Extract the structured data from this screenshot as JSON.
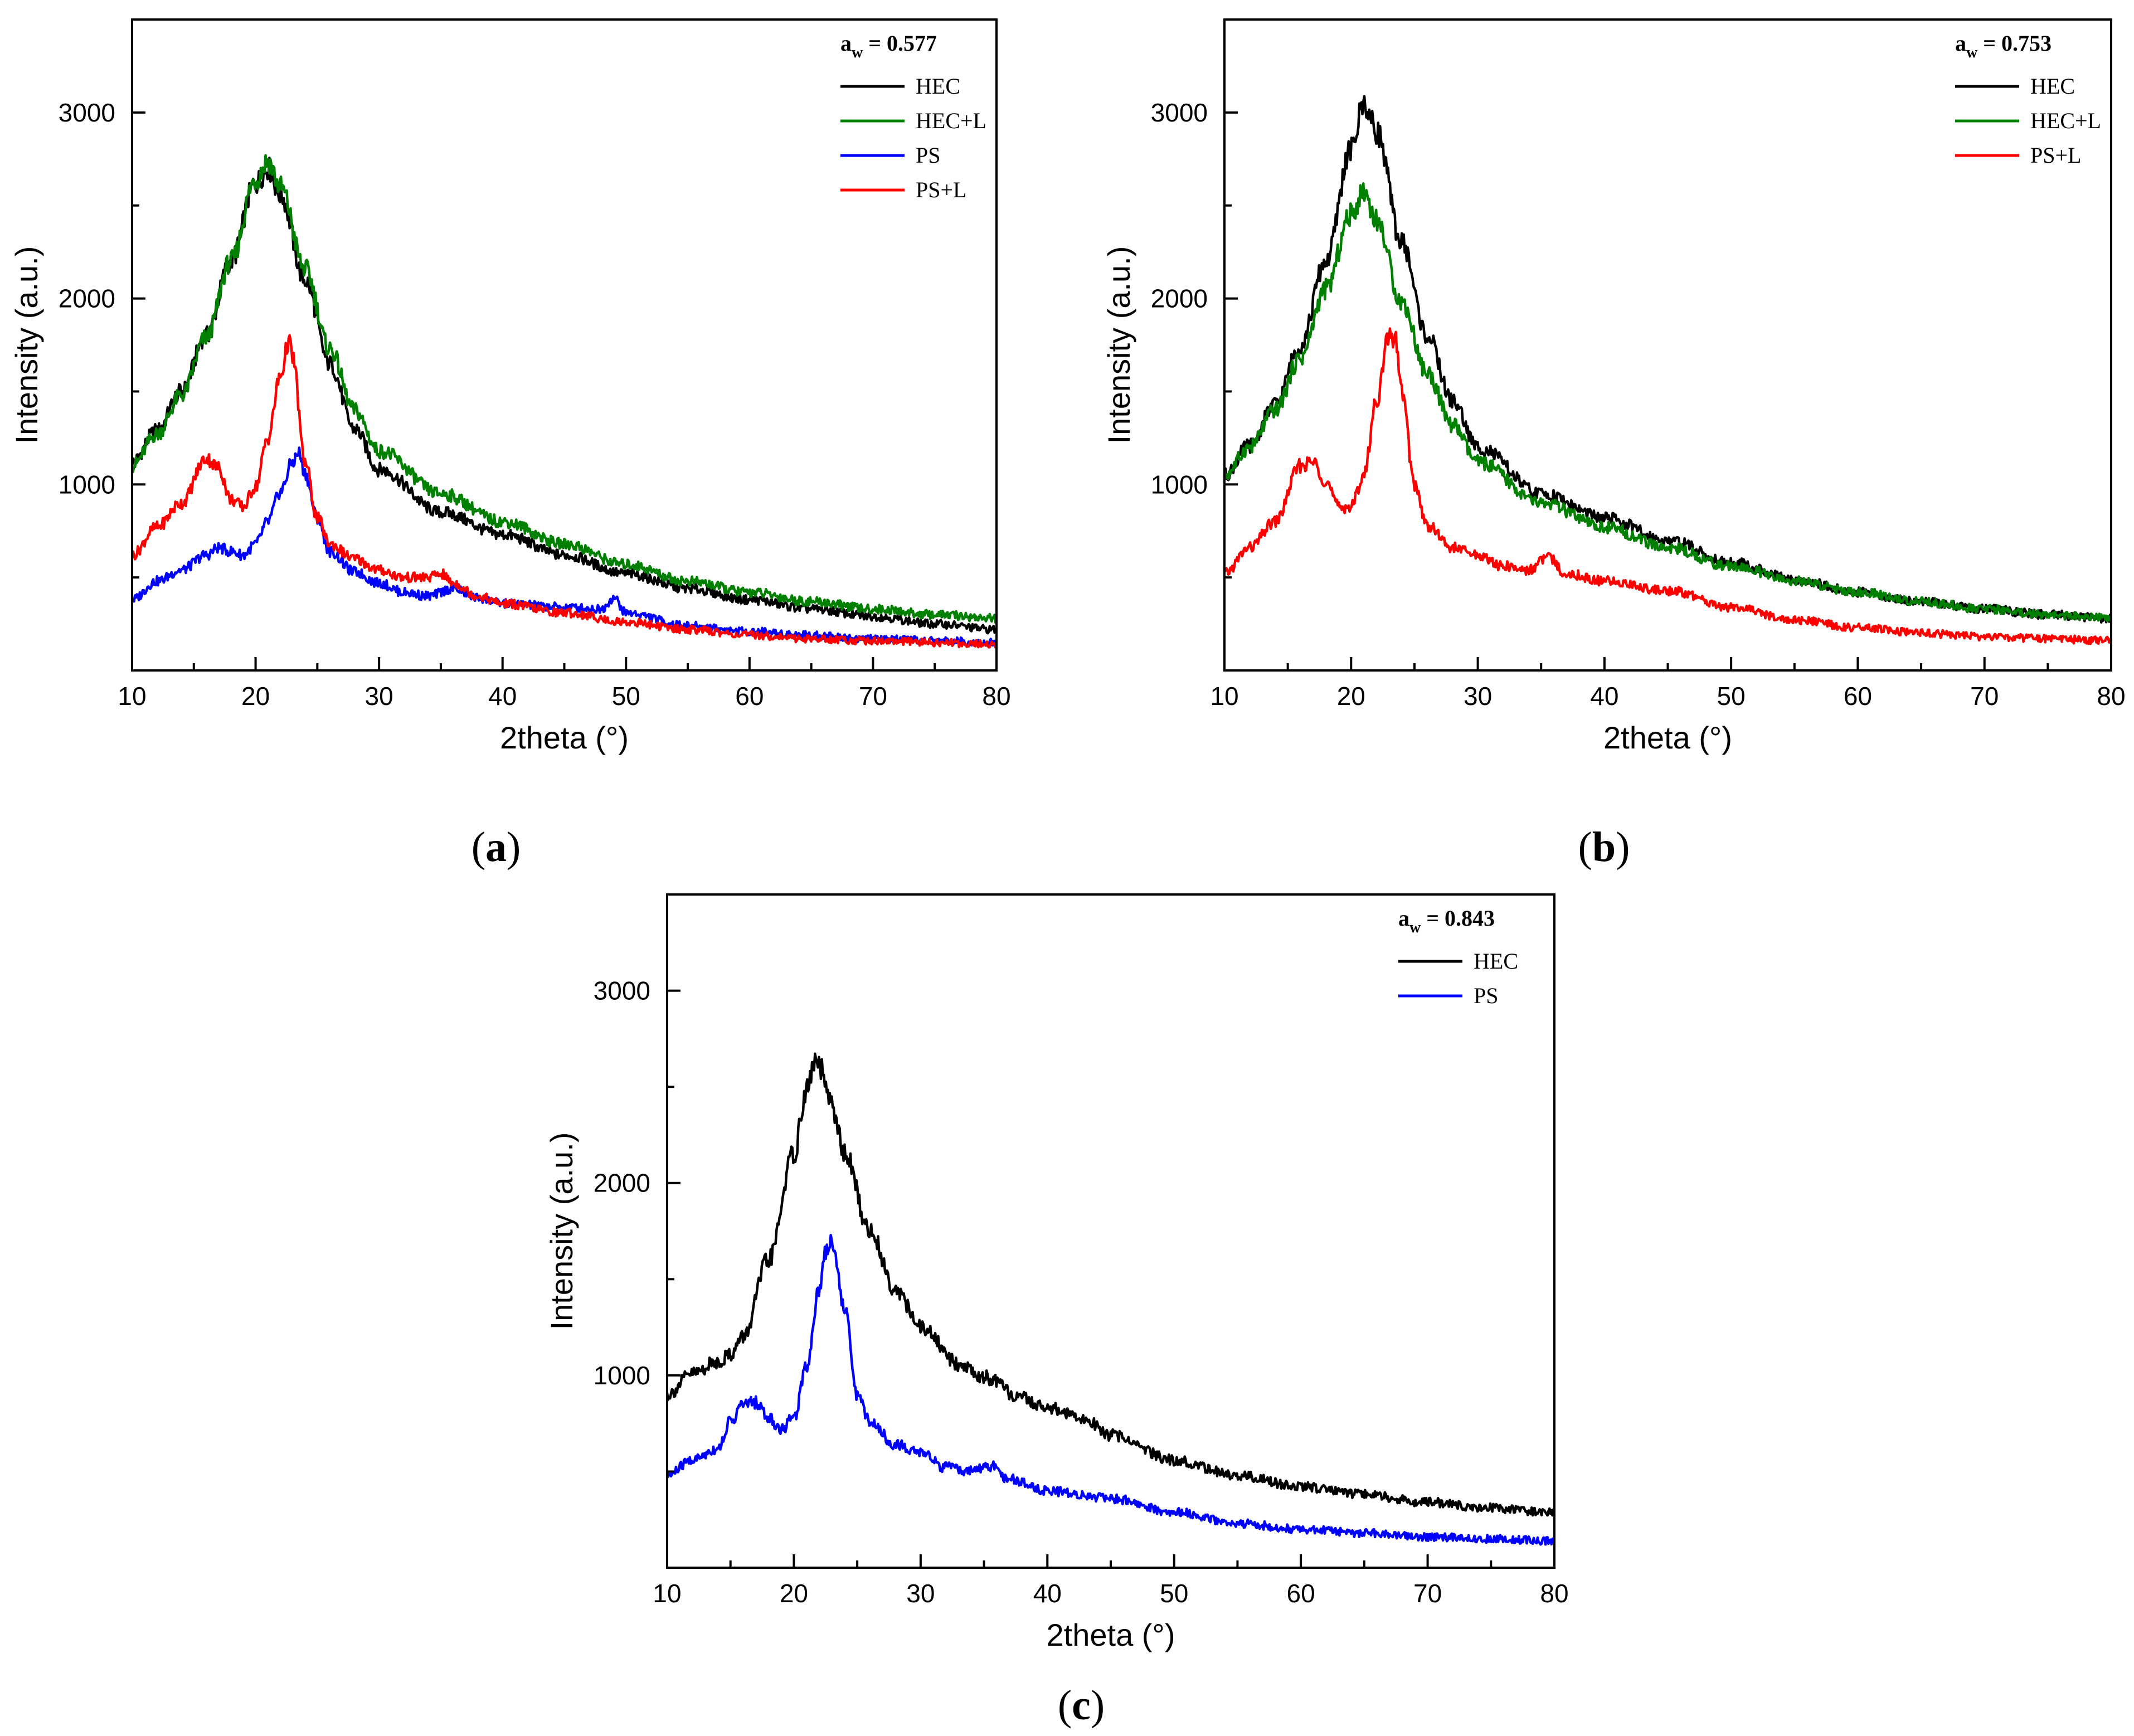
{
  "chart_data": [
    {
      "type": "line",
      "panel": "a",
      "panel_label_letter": "a",
      "panel_label_open": "(",
      "panel_label_close": ")",
      "legend_title_prefix": "a",
      "legend_title_sub": "w",
      "legend_title_suffix": "= 0.577",
      "xlabel": "2theta (°)",
      "ylabel": "Intensity (a.u.)",
      "xlim": [
        10,
        80
      ],
      "ylim": [
        0,
        3500
      ],
      "xticks": [
        10,
        20,
        30,
        40,
        50,
        60,
        70,
        80
      ],
      "yticks": [
        1000,
        2000,
        3000
      ],
      "legend_position": "top-right",
      "series": [
        {
          "name": "HEC",
          "color": "#000000",
          "x": [
            10,
            12,
            14,
            16,
            18,
            20,
            21,
            22,
            24,
            26,
            28,
            30,
            35,
            40,
            45,
            50,
            55,
            60,
            65,
            70,
            75,
            80
          ],
          "y": [
            1120,
            1290,
            1500,
            1800,
            2200,
            2620,
            2700,
            2560,
            2100,
            1650,
            1300,
            1080,
            850,
            730,
            620,
            520,
            440,
            380,
            330,
            290,
            250,
            220
          ]
        },
        {
          "name": "HEC+L",
          "color": "#008000",
          "x": [
            10,
            12,
            14,
            16,
            18,
            20,
            21,
            22,
            24,
            26,
            28,
            30,
            35,
            40,
            45,
            50,
            55,
            60,
            65,
            70,
            75,
            80
          ],
          "y": [
            1100,
            1270,
            1480,
            1790,
            2200,
            2640,
            2740,
            2600,
            2160,
            1730,
            1400,
            1180,
            950,
            800,
            680,
            570,
            480,
            420,
            370,
            330,
            300,
            280
          ]
        },
        {
          "name": "PS",
          "color": "#0000ff",
          "x": [
            10,
            12,
            14,
            16,
            17,
            18,
            19,
            20,
            21,
            22,
            23,
            23.5,
            24,
            25,
            26,
            28,
            30,
            32,
            34,
            36,
            38,
            40,
            45,
            48,
            49,
            50,
            55,
            60,
            65,
            70,
            75,
            80
          ],
          "y": [
            380,
            480,
            540,
            620,
            660,
            640,
            620,
            680,
            800,
            960,
            1120,
            1170,
            1060,
            820,
            640,
            530,
            470,
            420,
            400,
            440,
            390,
            360,
            340,
            330,
            390,
            310,
            240,
            210,
            190,
            170,
            160,
            150
          ]
        },
        {
          "name": "PS+L",
          "color": "#ff0000",
          "x": [
            10,
            12,
            14,
            16,
            17,
            18,
            19,
            20,
            21,
            22,
            22.7,
            23,
            24,
            25,
            26,
            28,
            30,
            32,
            34,
            35,
            36,
            38,
            40,
            45,
            50,
            55,
            60,
            65,
            70,
            75,
            80
          ],
          "y": [
            620,
            770,
            900,
            1140,
            1090,
            920,
            880,
            990,
            1250,
            1580,
            1770,
            1680,
            1120,
            820,
            680,
            600,
            540,
            500,
            500,
            520,
            470,
            400,
            360,
            310,
            260,
            220,
            190,
            170,
            160,
            150,
            140
          ]
        }
      ]
    },
    {
      "type": "line",
      "panel": "b",
      "panel_label_letter": "b",
      "panel_label_open": "(",
      "panel_label_close": ")",
      "legend_title_prefix": "a",
      "legend_title_sub": "w",
      "legend_title_suffix": "= 0.753",
      "xlabel": "2theta (°)",
      "ylabel": "Intensity (a.u.)",
      "xlim": [
        10,
        80
      ],
      "ylim": [
        0,
        3500
      ],
      "xticks": [
        10,
        20,
        30,
        40,
        50,
        60,
        70,
        80
      ],
      "yticks": [
        1000,
        2000,
        3000
      ],
      "legend_position": "top-right",
      "series": [
        {
          "name": "HEC",
          "color": "#000000",
          "x": [
            10,
            12,
            14,
            16,
            18,
            20,
            21,
            22,
            24,
            26,
            28,
            30,
            35,
            40,
            45,
            50,
            55,
            60,
            65,
            70,
            75,
            80
          ],
          "y": [
            1050,
            1210,
            1430,
            1750,
            2200,
            2800,
            3050,
            2900,
            2300,
            1800,
            1450,
            1200,
            950,
            820,
            700,
            580,
            490,
            420,
            370,
            330,
            300,
            280
          ]
        },
        {
          "name": "HEC+L",
          "color": "#008000",
          "x": [
            10,
            12,
            14,
            16,
            18,
            20,
            21,
            22,
            24,
            26,
            28,
            30,
            35,
            40,
            45,
            50,
            55,
            60,
            65,
            70,
            75,
            80
          ],
          "y": [
            1050,
            1200,
            1400,
            1680,
            2050,
            2450,
            2580,
            2420,
            1980,
            1600,
            1320,
            1120,
            900,
            770,
            660,
            560,
            480,
            420,
            370,
            330,
            300,
            280
          ]
        },
        {
          "name": "PS+L",
          "color": "#ff0000",
          "x": [
            10,
            12,
            14,
            16,
            17,
            18,
            19,
            20,
            21,
            22,
            23,
            23.5,
            24,
            25,
            26,
            28,
            30,
            32,
            34,
            35.5,
            37,
            40,
            45,
            50,
            55,
            60,
            65,
            70,
            75,
            80
          ],
          "y": [
            520,
            660,
            800,
            1100,
            1120,
            1020,
            880,
            880,
            1050,
            1450,
            1800,
            1780,
            1500,
            1000,
            780,
            660,
            620,
            560,
            540,
            610,
            520,
            480,
            430,
            340,
            270,
            230,
            200,
            180,
            170,
            160
          ]
        }
      ]
    },
    {
      "type": "line",
      "panel": "c",
      "panel_label_letter": "c",
      "panel_label_open": "(",
      "panel_label_close": ")",
      "legend_title_prefix": "a",
      "legend_title_sub": "w",
      "legend_title_suffix": "= 0.843",
      "xlabel": "2theta (°)",
      "ylabel": "Intensity (a.u.)",
      "xlim": [
        10,
        80
      ],
      "ylim": [
        0,
        3500
      ],
      "xticks": [
        10,
        20,
        30,
        40,
        50,
        60,
        70,
        80
      ],
      "yticks": [
        1000,
        2000,
        3000
      ],
      "legend_position": "top-right",
      "series": [
        {
          "name": "HEC",
          "color": "#000000",
          "x": [
            10,
            12,
            14,
            15,
            16,
            18,
            20,
            21,
            21.7,
            22,
            23,
            24,
            26,
            28,
            30,
            33,
            35,
            38,
            40,
            43,
            45,
            50,
            55,
            60,
            65,
            70,
            75,
            80
          ],
          "y": [
            900,
            1010,
            1070,
            1110,
            1200,
            1600,
            2150,
            2480,
            2640,
            2600,
            2400,
            2150,
            1750,
            1450,
            1250,
            1060,
            990,
            880,
            830,
            770,
            690,
            560,
            480,
            420,
            380,
            340,
            310,
            290
          ]
        },
        {
          "name": "PS",
          "color": "#0000ff",
          "x": [
            10,
            12,
            14,
            15,
            16,
            17,
            18,
            19,
            20,
            21,
            22,
            22.5,
            23,
            24,
            25,
            26,
            28,
            30,
            32,
            34,
            35.5,
            37,
            40,
            45,
            50,
            55,
            60,
            65,
            70,
            75,
            80
          ],
          "y": [
            480,
            560,
            620,
            760,
            850,
            860,
            780,
            720,
            780,
            1050,
            1450,
            1650,
            1700,
            1350,
            900,
            760,
            640,
            600,
            520,
            500,
            530,
            460,
            400,
            360,
            290,
            230,
            200,
            180,
            160,
            150,
            140
          ]
        }
      ]
    }
  ]
}
